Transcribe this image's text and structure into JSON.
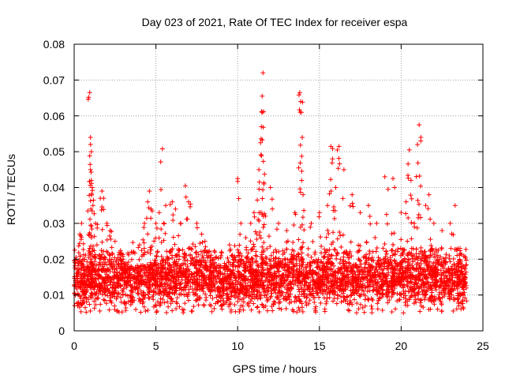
{
  "chart_data": {
    "type": "scatter",
    "title": "Day 023 of 2021, Rate Of TEC Index for receiver espa",
    "xlabel": "GPS time / hours",
    "ylabel": "ROTI / TECUs",
    "xlim": [
      0,
      25
    ],
    "ylim": [
      0,
      0.08
    ],
    "x_ticks": [
      0,
      5,
      10,
      15,
      20,
      25
    ],
    "x_tick_labels": [
      "0",
      "5",
      "10",
      "15",
      "20",
      "25"
    ],
    "y_ticks": [
      0,
      0.01,
      0.02,
      0.03,
      0.04,
      0.05,
      0.06,
      0.07,
      0.08
    ],
    "y_tick_labels": [
      "0",
      "0.01",
      "0.02",
      "0.03",
      "0.04",
      "0.05",
      "0.06",
      "0.07",
      "0.08"
    ],
    "grid": true,
    "marker": "+",
    "color": "#ff0000",
    "x_range_of_data": [
      0,
      24
    ],
    "typical_band": [
      0.005,
      0.025
    ],
    "series": [
      {
        "name": "espa",
        "points": [
          [
            0.2,
            0.014
          ],
          [
            0.35,
            0.027
          ],
          [
            0.45,
            0.03
          ],
          [
            0.6,
            0.02
          ],
          [
            0.8,
            0.018
          ],
          [
            0.95,
            0.0665
          ],
          [
            1.0,
            0.054
          ],
          [
            1.0,
            0.052
          ],
          [
            1.05,
            0.05
          ],
          [
            1.0,
            0.045
          ],
          [
            1.05,
            0.042
          ],
          [
            1.1,
            0.04
          ],
          [
            1.15,
            0.035
          ],
          [
            1.3,
            0.03
          ],
          [
            1.6,
            0.037
          ],
          [
            1.7,
            0.039
          ],
          [
            1.8,
            0.037
          ],
          [
            2.0,
            0.03
          ],
          [
            2.2,
            0.028
          ],
          [
            2.5,
            0.025
          ],
          [
            3.0,
            0.02
          ],
          [
            3.5,
            0.022
          ],
          [
            4.0,
            0.024
          ],
          [
            4.3,
            0.03
          ],
          [
            4.5,
            0.036
          ],
          [
            4.6,
            0.039
          ],
          [
            4.7,
            0.034
          ],
          [
            5.0,
            0.03
          ],
          [
            5.2,
            0.033
          ],
          [
            5.4,
            0.0508
          ],
          [
            5.6,
            0.035
          ],
          [
            6.0,
            0.036
          ],
          [
            6.2,
            0.034
          ],
          [
            6.5,
            0.03
          ],
          [
            6.8,
            0.0405
          ],
          [
            7.0,
            0.036
          ],
          [
            7.5,
            0.03
          ],
          [
            7.8,
            0.027
          ],
          [
            8.0,
            0.025
          ],
          [
            8.5,
            0.02
          ],
          [
            9.0,
            0.022
          ],
          [
            9.5,
            0.024
          ],
          [
            10.0,
            0.0425
          ],
          [
            10.2,
            0.03
          ],
          [
            10.5,
            0.026
          ],
          [
            10.8,
            0.03
          ],
          [
            11.0,
            0.033
          ],
          [
            11.2,
            0.0365
          ],
          [
            11.3,
            0.045
          ],
          [
            11.4,
            0.0525
          ],
          [
            11.45,
            0.057
          ],
          [
            11.5,
            0.061
          ],
          [
            11.5,
            0.0655
          ],
          [
            11.55,
            0.072
          ],
          [
            11.7,
            0.032
          ],
          [
            12.0,
            0.04
          ],
          [
            12.5,
            0.03
          ],
          [
            13.0,
            0.028
          ],
          [
            13.5,
            0.033
          ],
          [
            13.8,
            0.0665
          ],
          [
            13.85,
            0.064
          ],
          [
            13.9,
            0.061
          ],
          [
            13.95,
            0.054
          ],
          [
            14.0,
            0.038
          ],
          [
            14.5,
            0.03
          ],
          [
            15.0,
            0.033
          ],
          [
            15.5,
            0.035
          ],
          [
            15.7,
            0.0515
          ],
          [
            15.8,
            0.048
          ],
          [
            16.0,
            0.04
          ],
          [
            16.2,
            0.0515
          ],
          [
            16.5,
            0.045
          ],
          [
            17.0,
            0.038
          ],
          [
            17.5,
            0.033
          ],
          [
            18.0,
            0.035
          ],
          [
            18.5,
            0.03
          ],
          [
            19.0,
            0.043
          ],
          [
            19.2,
            0.0395
          ],
          [
            19.5,
            0.0425
          ],
          [
            19.6,
            0.04
          ],
          [
            20.0,
            0.033
          ],
          [
            20.3,
            0.036
          ],
          [
            20.5,
            0.0505
          ],
          [
            20.6,
            0.042
          ],
          [
            20.8,
            0.03
          ],
          [
            21.0,
            0.052
          ],
          [
            21.1,
            0.0575
          ],
          [
            21.2,
            0.053
          ],
          [
            21.5,
            0.035
          ],
          [
            21.7,
            0.038
          ],
          [
            22.0,
            0.03
          ],
          [
            22.5,
            0.028
          ],
          [
            23.0,
            0.03
          ],
          [
            23.3,
            0.035
          ],
          [
            23.6,
            0.023
          ],
          [
            23.9,
            0.015
          ]
        ]
      }
    ]
  }
}
